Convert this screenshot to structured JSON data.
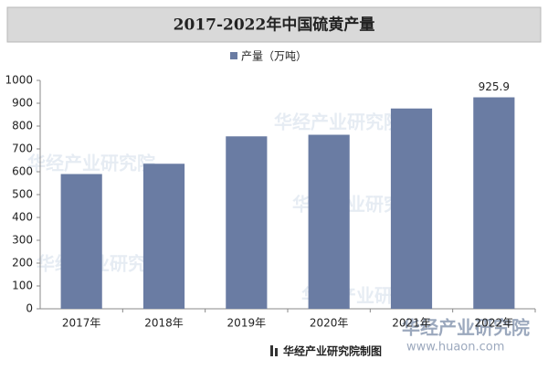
{
  "chart_data": {
    "type": "bar",
    "title": "2017-2022年中国硫黄产量",
    "categories": [
      "2017年",
      "2018年",
      "2019年",
      "2020年",
      "2021年",
      "2022年"
    ],
    "series": [
      {
        "name": "产量（万吨）",
        "color": "#6a7ca3",
        "values": [
          590,
          635,
          755,
          762,
          877,
          925.9
        ]
      }
    ],
    "value_labels": [
      null,
      null,
      null,
      null,
      null,
      "925.9"
    ],
    "ylim": [
      0,
      1000
    ],
    "yticks": [
      0,
      100,
      200,
      300,
      400,
      500,
      600,
      700,
      800,
      900,
      1000
    ],
    "grid": false,
    "legend": "top",
    "source": "华经产业研究院制图",
    "watermark": "华经产业研究院",
    "watermark_url": "www.huaon.com"
  }
}
